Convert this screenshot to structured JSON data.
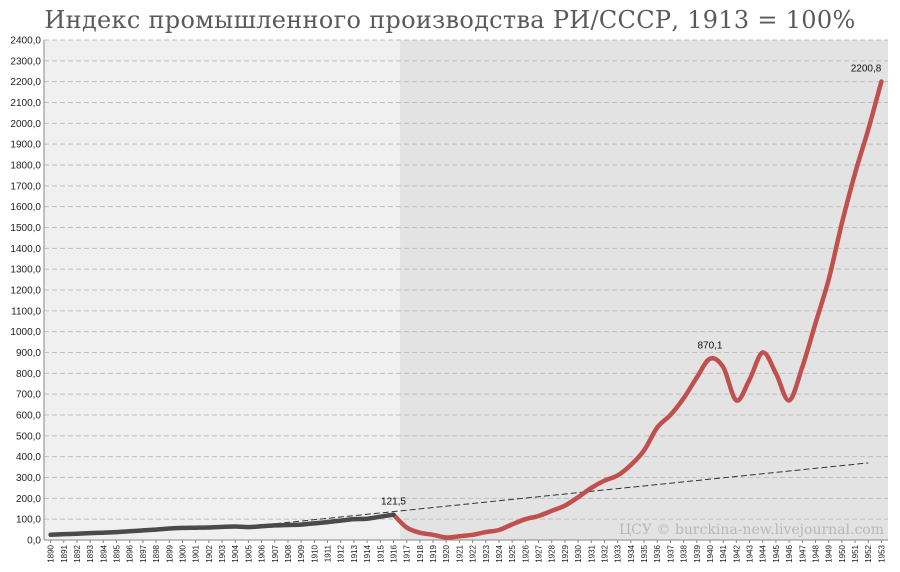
{
  "chart_data": {
    "type": "line",
    "title": "Индекс промышленного производства РИ/СССР, 1913 = 100%",
    "ylim": [
      0,
      2400
    ],
    "yticks": [
      "0,0",
      "100,0",
      "200,0",
      "300,0",
      "400,0",
      "500,0",
      "600,0",
      "700,0",
      "800,0",
      "900,0",
      "1000,0",
      "1100,0",
      "1200,0",
      "1300,0",
      "1400,0",
      "1500,0",
      "1600,0",
      "1700,0",
      "1800,0",
      "1900,0",
      "2000,0",
      "2100,0",
      "2200,0",
      "2300,0",
      "2400,0"
    ],
    "x": [
      1890,
      1891,
      1892,
      1893,
      1894,
      1895,
      1896,
      1897,
      1898,
      1899,
      1900,
      1901,
      1902,
      1903,
      1904,
      1905,
      1906,
      1907,
      1908,
      1909,
      1910,
      1911,
      1912,
      1913,
      1914,
      1915,
      1916,
      1917,
      1918,
      1919,
      1920,
      1921,
      1922,
      1923,
      1924,
      1925,
      1926,
      1927,
      1928,
      1929,
      1930,
      1931,
      1932,
      1933,
      1934,
      1935,
      1936,
      1937,
      1938,
      1939,
      1940,
      1941,
      1942,
      1943,
      1944,
      1945,
      1946,
      1947,
      1948,
      1949,
      1950,
      1951,
      1952,
      1953
    ],
    "grid": true,
    "shaded_region": {
      "from": 1917,
      "to": 1953
    },
    "series": [
      {
        "color": "#4a4a4a",
        "x": [
          1890,
          1891,
          1892,
          1893,
          1894,
          1895,
          1896,
          1897,
          1898,
          1899,
          1900,
          1901,
          1902,
          1903,
          1904,
          1905,
          1906,
          1907,
          1908,
          1909,
          1910,
          1911,
          1912,
          1913,
          1914,
          1915,
          1916
        ],
        "values": [
          25,
          28,
          30,
          33,
          35,
          38,
          42,
          46,
          50,
          55,
          58,
          59,
          60,
          63,
          65,
          62,
          66,
          70,
          72,
          74,
          80,
          86,
          93,
          100,
          102,
          112,
          121.5
        ]
      },
      {
        "color": "#c0504d",
        "x": [
          1916,
          1917,
          1918,
          1919,
          1920,
          1921,
          1922,
          1923,
          1924,
          1925,
          1926,
          1927,
          1928,
          1929,
          1930,
          1931,
          1932,
          1933,
          1934,
          1935,
          1936,
          1937,
          1938,
          1939,
          1940,
          1941,
          1942,
          1943,
          1944,
          1945,
          1946,
          1947,
          1948,
          1949,
          1950,
          1951,
          1952,
          1953
        ],
        "values": [
          121.5,
          60,
          35,
          25,
          12,
          18,
          25,
          38,
          48,
          75,
          100,
          115,
          140,
          165,
          205,
          250,
          285,
          310,
          360,
          430,
          540,
          600,
          680,
          780,
          870.1,
          830,
          670,
          770,
          900,
          800,
          670,
          830,
          1040,
          1250,
          1520,
          1760,
          1970,
          2200.8
        ]
      },
      {
        "color": "#333333",
        "style": "dashed",
        "x": [
          1905,
          1952
        ],
        "values": [
          65,
          370
        ]
      }
    ],
    "annotations": [
      {
        "x": 1916,
        "y": 121.5,
        "text": "121,5"
      },
      {
        "x": 1940,
        "y": 870.1,
        "text": "870,1"
      },
      {
        "x": 1953,
        "y": 2200.8,
        "text": "2200,8"
      }
    ],
    "watermark": "ЦСУ © burckina-new.livejournal.com"
  }
}
